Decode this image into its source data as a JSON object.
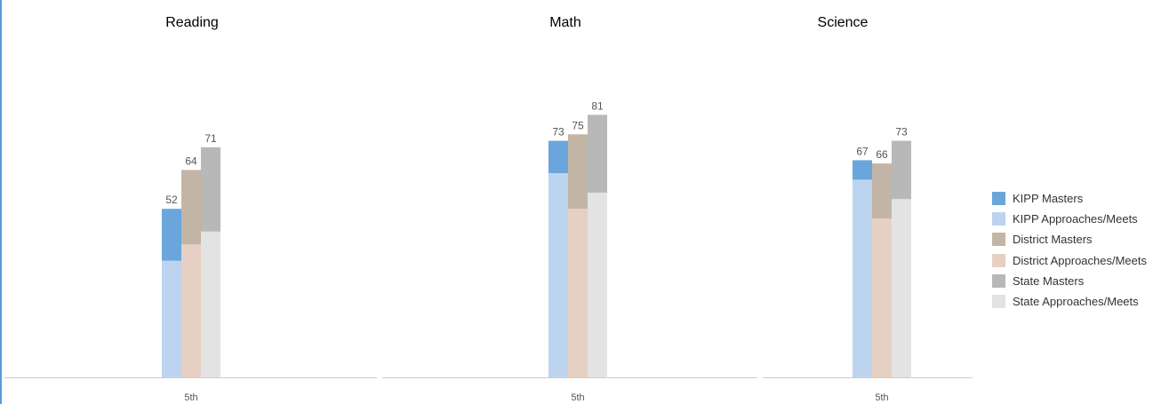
{
  "legend": [
    {
      "label": "KIPP Masters",
      "color": "#6aa6dc"
    },
    {
      "label": "KIPP Approaches/Meets",
      "color": "#bcd4f0"
    },
    {
      "label": "District Masters",
      "color": "#c3b5a5"
    },
    {
      "label": "District Approaches/Meets",
      "color": "#e6d0c4"
    },
    {
      "label": "State Masters",
      "color": "#b8b8b8"
    },
    {
      "label": "State Approaches/Meets",
      "color": "#e3e3e3"
    }
  ],
  "chart_data": [
    {
      "type": "bar",
      "title": "Reading",
      "categories": [
        "5th"
      ],
      "ylim": [
        0,
        100
      ],
      "grid": false,
      "legend_position": "right",
      "series": [
        {
          "name": "KIPP Approaches/Meets",
          "values": [
            36
          ]
        },
        {
          "name": "KIPP Masters",
          "values": [
            16
          ]
        },
        {
          "name": "District Approaches/Meets",
          "values": [
            41
          ]
        },
        {
          "name": "District Masters",
          "values": [
            23
          ]
        },
        {
          "name": "State Approaches/Meets",
          "values": [
            45
          ]
        },
        {
          "name": "State Masters",
          "values": [
            26
          ]
        }
      ],
      "totals": [
        "52",
        "64",
        "71"
      ]
    },
    {
      "type": "bar",
      "title": "Math",
      "categories": [
        "5th"
      ],
      "ylim": [
        0,
        100
      ],
      "grid": false,
      "legend_position": "right",
      "series": [
        {
          "name": "KIPP Approaches/Meets",
          "values": [
            63
          ]
        },
        {
          "name": "KIPP Masters",
          "values": [
            10
          ]
        },
        {
          "name": "District Approaches/Meets",
          "values": [
            52
          ]
        },
        {
          "name": "District Masters",
          "values": [
            23
          ]
        },
        {
          "name": "State Approaches/Meets",
          "values": [
            57
          ]
        },
        {
          "name": "State Masters",
          "values": [
            24
          ]
        }
      ],
      "totals": [
        "73",
        "75",
        "81"
      ]
    },
    {
      "type": "bar",
      "title": "Science",
      "categories": [
        "5th"
      ],
      "ylim": [
        0,
        100
      ],
      "grid": false,
      "legend_position": "right",
      "series": [
        {
          "name": "KIPP Approaches/Meets",
          "values": [
            61
          ]
        },
        {
          "name": "KIPP Masters",
          "values": [
            6
          ]
        },
        {
          "name": "District Approaches/Meets",
          "values": [
            49
          ]
        },
        {
          "name": "District Masters",
          "values": [
            17
          ]
        },
        {
          "name": "State Approaches/Meets",
          "values": [
            55
          ]
        },
        {
          "name": "State Masters",
          "values": [
            18
          ]
        }
      ],
      "totals": [
        "67",
        "66",
        "73"
      ]
    }
  ]
}
